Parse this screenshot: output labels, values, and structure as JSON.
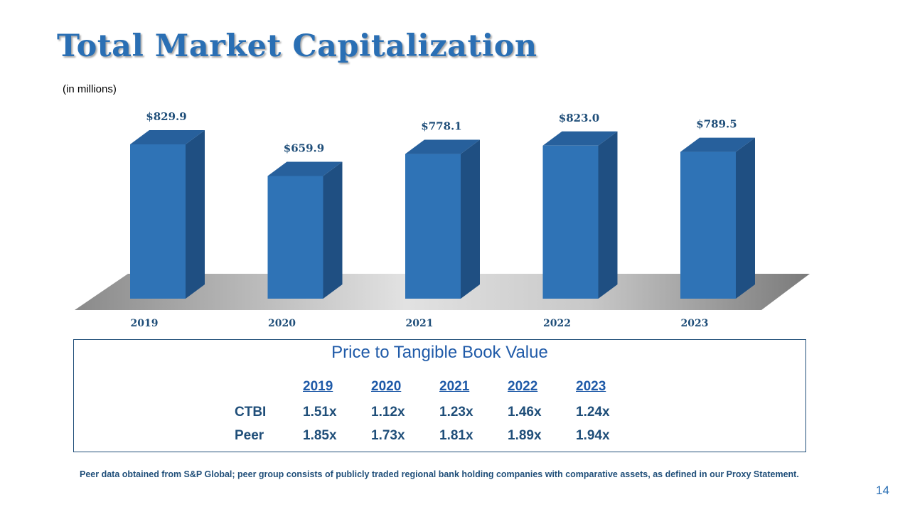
{
  "title": "Total Market Capitalization",
  "subtitle": "(in millions)",
  "colors": {
    "title": "#2a6fb4",
    "bar_front": "#2f73b6",
    "bar_side": "#1f4f82",
    "bar_top": "#27609c",
    "table_border": "#1f4e79"
  },
  "chart_data": {
    "type": "bar",
    "categories": [
      "2019",
      "2020",
      "2021",
      "2022",
      "2023"
    ],
    "values": [
      829.9,
      659.9,
      778.1,
      823.0,
      789.5
    ],
    "labels": [
      "$829.9",
      "$659.9",
      "$778.1",
      "$823.0",
      "$789.5"
    ],
    "ylim": [
      0,
      900
    ],
    "style": "3d"
  },
  "table": {
    "title": "Price to Tangible Book Value",
    "columns": [
      "2019",
      "2020",
      "2021",
      "2022",
      "2023"
    ],
    "rows": [
      {
        "label": "CTBI",
        "values": [
          "1.51x",
          "1.12x",
          "1.23x",
          "1.46x",
          "1.24x"
        ]
      },
      {
        "label": "Peer",
        "values": [
          "1.85x",
          "1.73x",
          "1.81x",
          "1.89x",
          "1.94x"
        ]
      }
    ]
  },
  "footnote": "Peer data obtained from S&P Global; peer group consists of publicly traded regional bank holding companies with comparative assets, as defined in our Proxy Statement.",
  "page_number": "14"
}
